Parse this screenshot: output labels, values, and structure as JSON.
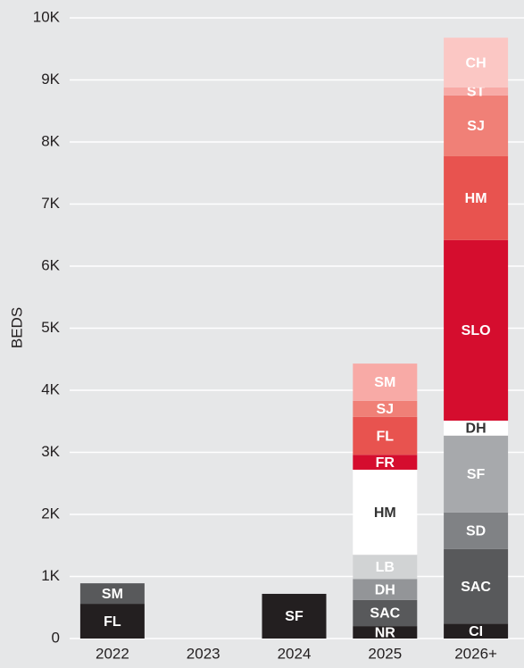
{
  "chart_data": {
    "type": "stacked-bar",
    "y_label": "BEDS",
    "categories": [
      "2022",
      "2023",
      "2024",
      "2025",
      "2026+"
    ],
    "bars": [
      [
        {
          "label": "FL",
          "value": 560,
          "color": "#231f20"
        },
        {
          "label": "SM",
          "value": 330,
          "color": "#58595b"
        }
      ],
      [],
      [
        {
          "label": "SF",
          "value": 720,
          "color": "#231f20"
        }
      ],
      [
        {
          "label": "NR",
          "value": 200,
          "color": "#231f20"
        },
        {
          "label": "SAC",
          "value": 420,
          "color": "#58595b"
        },
        {
          "label": "DH",
          "value": 340,
          "color": "#939598"
        },
        {
          "label": "LB",
          "value": 390,
          "color": "#d1d3d4"
        },
        {
          "label": "HM",
          "value": 1370,
          "color": "#ffffff"
        },
        {
          "label": "FR",
          "value": 240,
          "color": "#d50d2e"
        },
        {
          "label": "FL",
          "value": 610,
          "color": "#e8534f"
        },
        {
          "label": "SJ",
          "value": 260,
          "color": "#f08077"
        },
        {
          "label": "SM",
          "value": 600,
          "color": "#f8aaa6"
        }
      ],
      [
        {
          "label": "CI",
          "value": 240,
          "color": "#231f20"
        },
        {
          "label": "SAC",
          "value": 1200,
          "color": "#58595b"
        },
        {
          "label": "SD",
          "value": 590,
          "color": "#808285"
        },
        {
          "label": "SF",
          "value": 1240,
          "color": "#a7a9ac"
        },
        {
          "label": "DH",
          "value": 240,
          "color": "#ffffff"
        },
        {
          "label": "SLO",
          "value": 2910,
          "color": "#d50d2e"
        },
        {
          "label": "HM",
          "value": 1350,
          "color": "#e8534f"
        },
        {
          "label": "SJ",
          "value": 980,
          "color": "#f08077"
        },
        {
          "label": "ST",
          "value": 130,
          "color": "#f8aaa6"
        },
        {
          "label": "CH",
          "value": 800,
          "color": "#fbc7c4"
        }
      ]
    ],
    "ylim": [
      0,
      10000
    ],
    "yticks": [
      0,
      {
        "value": 1000,
        "label": "1K"
      },
      {
        "value": 2000,
        "label": "2K"
      },
      {
        "value": 3000,
        "label": "3K"
      },
      {
        "value": 4000,
        "label": "4K"
      },
      {
        "value": 5000,
        "label": "5K"
      },
      {
        "value": 6000,
        "label": "6K"
      },
      {
        "value": 7000,
        "label": "7K"
      },
      {
        "value": 8000,
        "label": "8K"
      },
      {
        "value": 9000,
        "label": "9K"
      },
      {
        "value": 10000,
        "label": "10K"
      }
    ],
    "grid": true
  }
}
